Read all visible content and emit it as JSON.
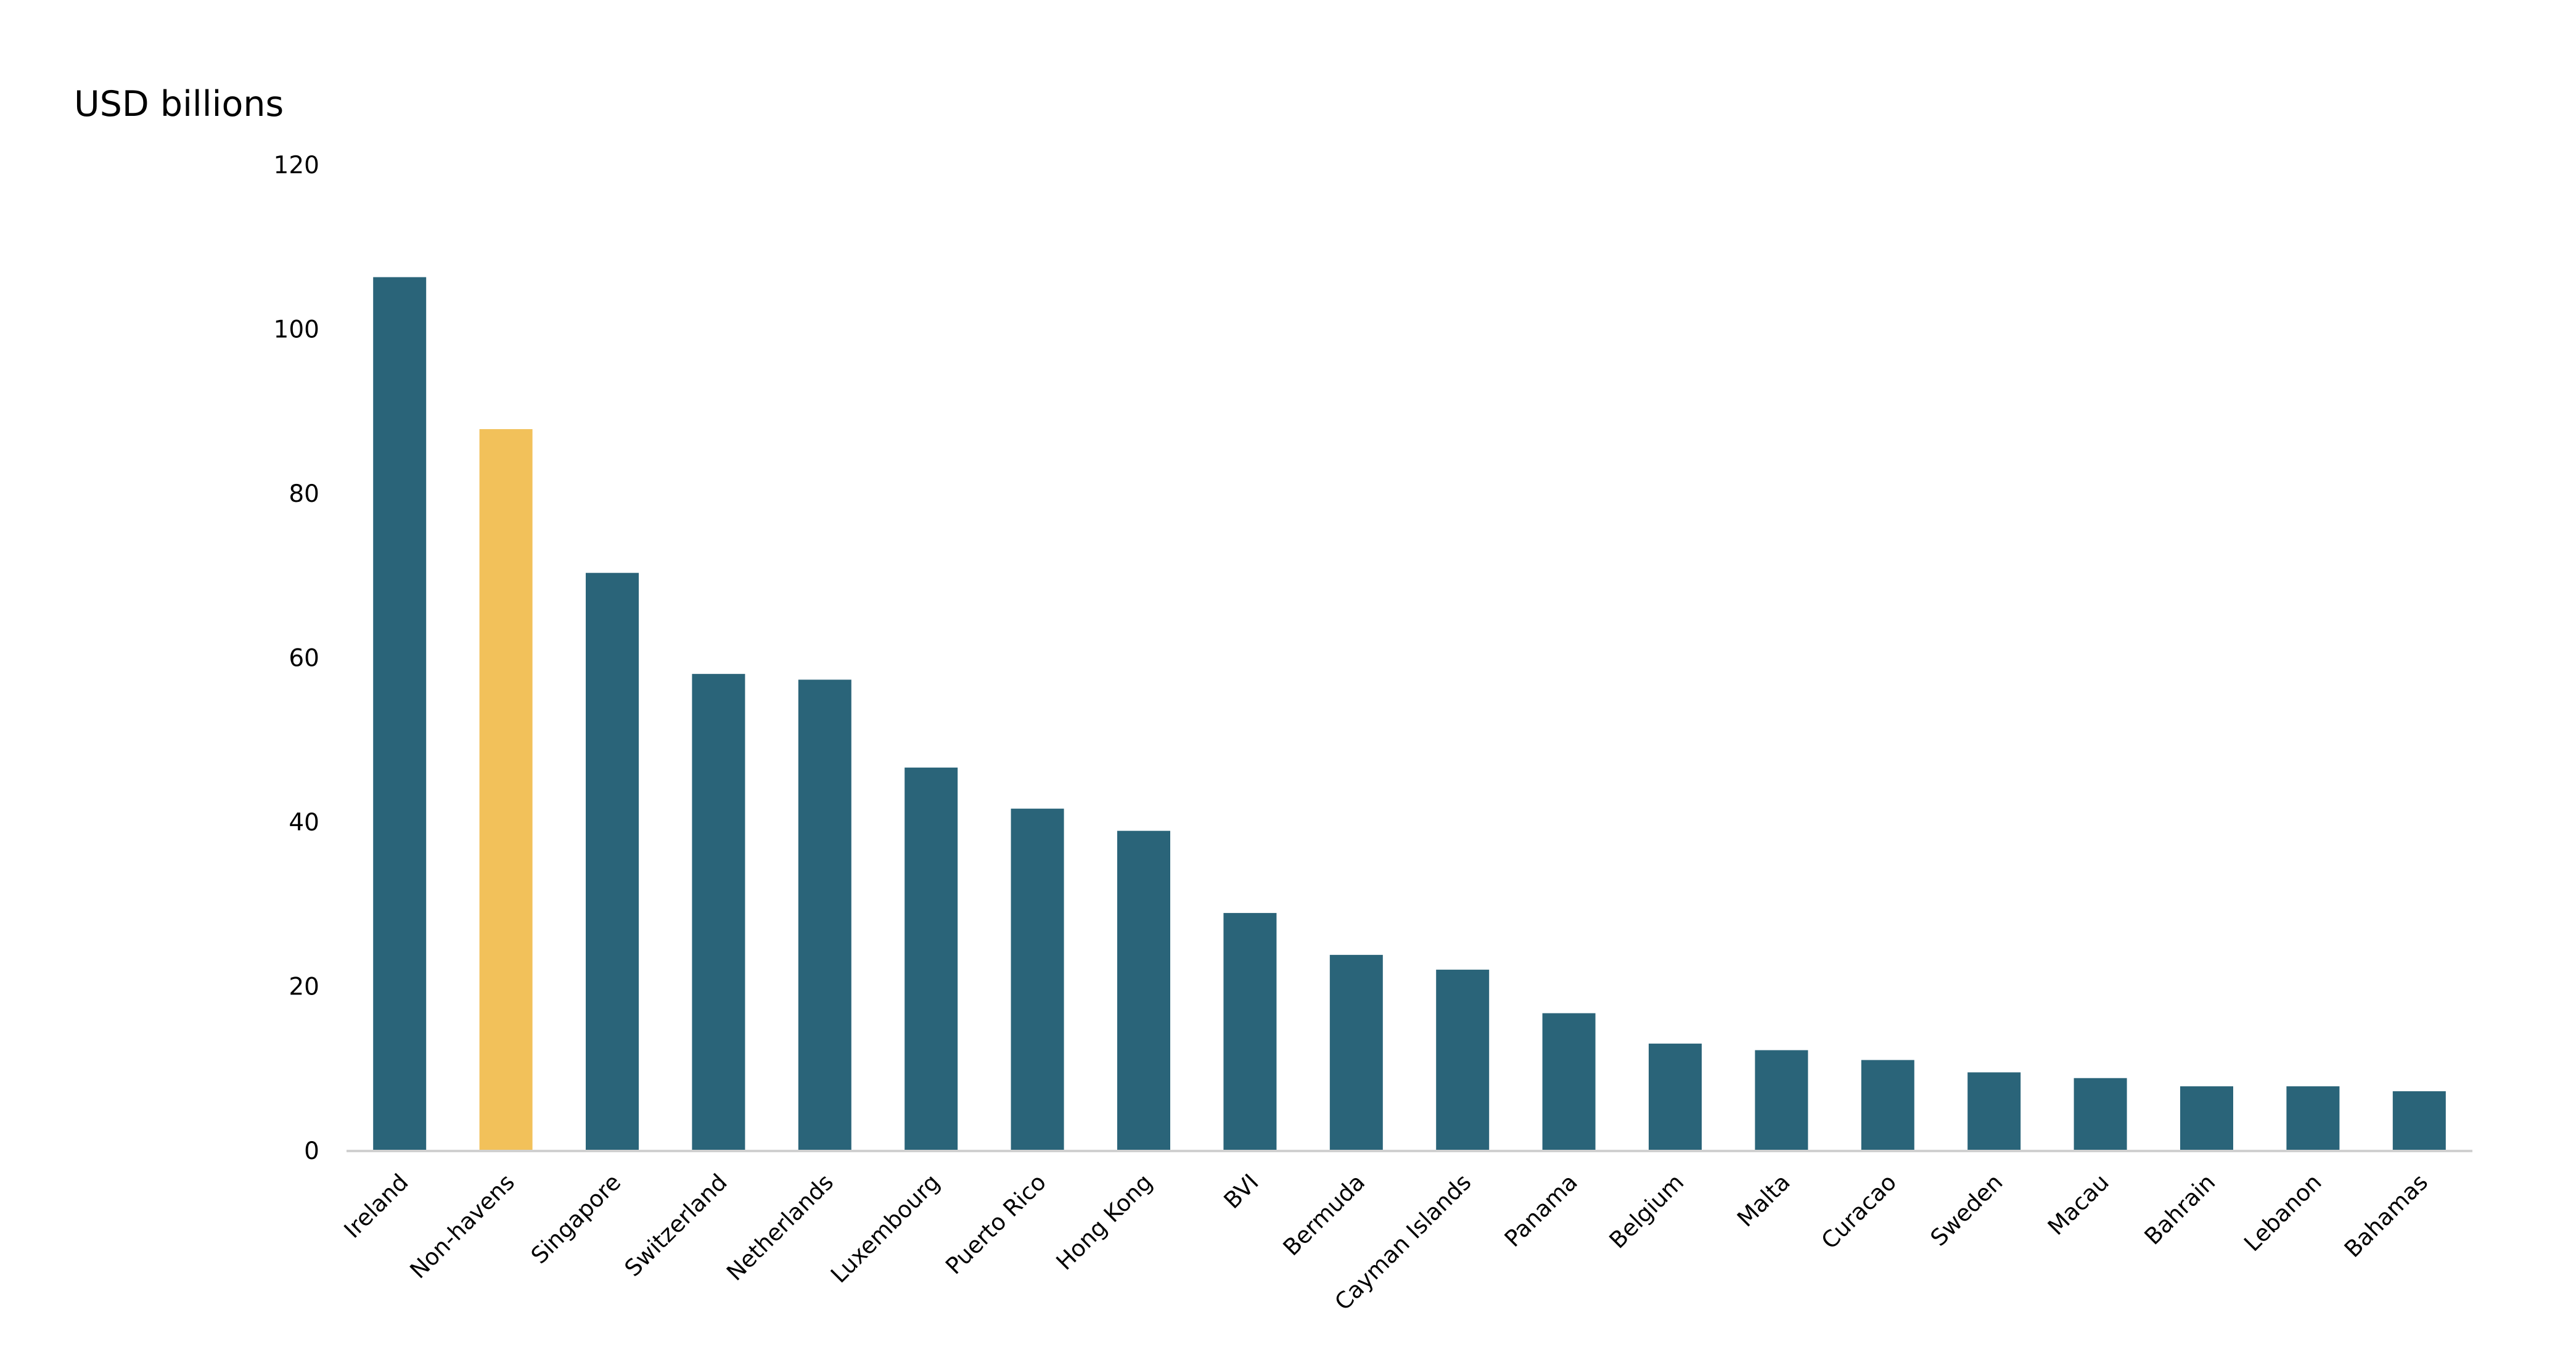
{
  "chart_data": {
    "type": "bar",
    "title": "",
    "xlabel": "",
    "ylabel": "USD billions",
    "ylim": [
      0,
      120
    ],
    "yticks": [
      "0",
      "20",
      "40",
      "60",
      "80",
      "100",
      "120"
    ],
    "grid": false,
    "legend": "none",
    "categories": [
      "Ireland",
      "Non-havens",
      "Singapore",
      "Switzerland",
      "Netherlands",
      "Luxembourg",
      "Puerto Rico",
      "Hong Kong",
      "BVI",
      "Bermuda",
      "Cayman Islands",
      "Panama",
      "Belgium",
      "Malta",
      "Curacao",
      "Sweden",
      "Macau",
      "Bahrain",
      "Lebanon",
      "Bahamas"
    ],
    "values": [
      106.3,
      87.8,
      70.3,
      58.0,
      57.3,
      46.6,
      41.6,
      38.9,
      28.9,
      23.8,
      22.0,
      16.7,
      13.0,
      12.2,
      11.0,
      9.5,
      8.8,
      7.8,
      7.8,
      7.2
    ],
    "colors": {
      "default": "#2a6479",
      "highlight": "#f2c15a",
      "axis": "#d0d0d0"
    },
    "highlight_categories": [
      "Non-havens"
    ]
  }
}
